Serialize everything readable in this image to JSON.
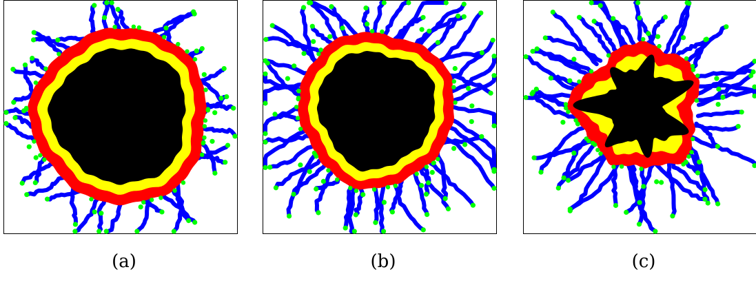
{
  "figure": {
    "panels": [
      {
        "id": "a",
        "caption": "(a)",
        "core_shape": "round"
      },
      {
        "id": "b",
        "caption": "(b)",
        "core_shape": "round"
      },
      {
        "id": "c",
        "caption": "(c)",
        "core_shape": "branched"
      }
    ],
    "colors": {
      "core": "#000000",
      "inner_ring": "#ffff00",
      "outer_ring": "#ff0000",
      "chains": "#0000ff",
      "chain_ends": "#00ff00",
      "frame": "#000000"
    }
  }
}
